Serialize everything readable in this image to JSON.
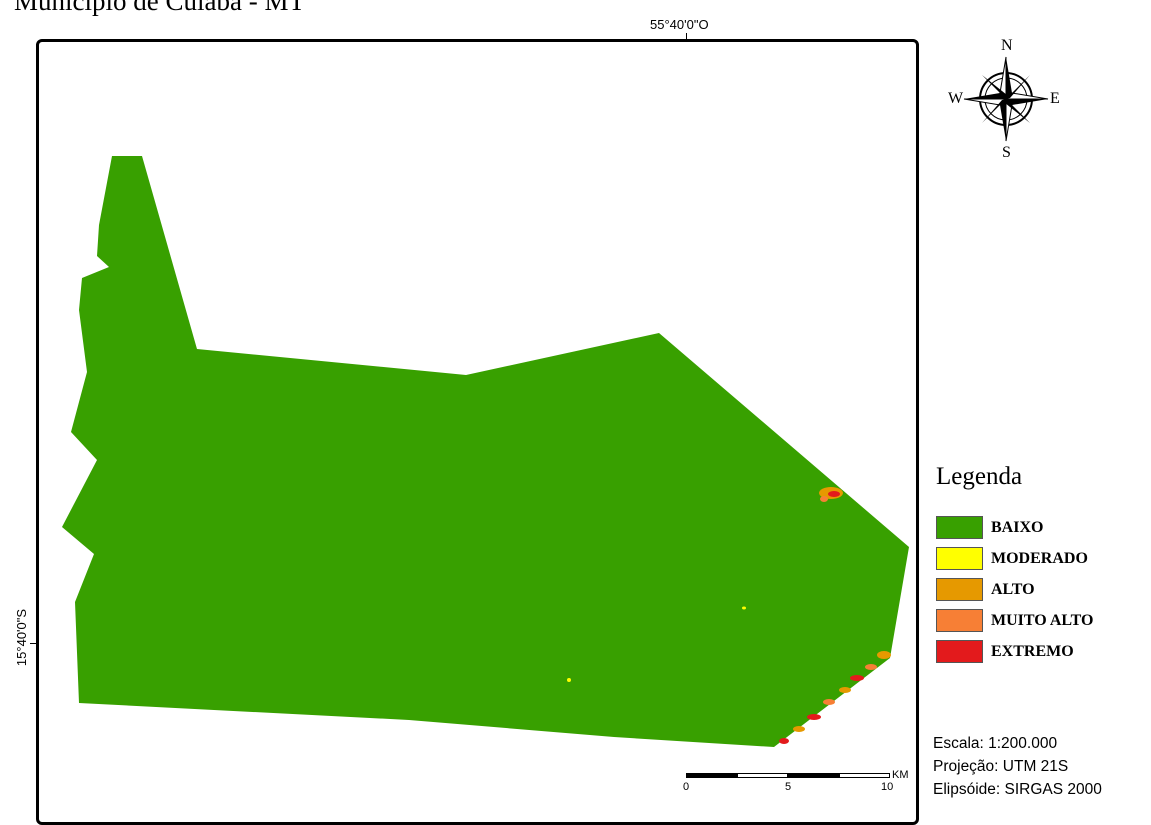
{
  "header": {
    "title": "Município de Cuiabá - MT"
  },
  "coordinates": {
    "top": "55°40'0\"O",
    "left": "15°40'0\"S"
  },
  "north_arrow": {
    "icon": "compass-rose-icon",
    "n": "N",
    "s": "S",
    "e": "E",
    "w": "W"
  },
  "legend": {
    "title": "Legenda",
    "items": [
      {
        "label": "BAIXO",
        "color": "#38a000"
      },
      {
        "label": "MODERADO",
        "color": "#ffff00"
      },
      {
        "label": "ALTO",
        "color": "#e69900"
      },
      {
        "label": "MUITO ALTO",
        "color": "#f77f35"
      },
      {
        "label": "EXTREMO",
        "color": "#e31a1c"
      }
    ]
  },
  "scalebar": {
    "ticks": [
      "0",
      "5",
      "10"
    ],
    "unit": "KM"
  },
  "info": {
    "scale": "Escala: 1:200.000",
    "projection": "Projeção: UTM 21S",
    "ellipsoid": "Elipsóide: SIRGAS 2000"
  },
  "map": {
    "fill_color": "#38a000"
  }
}
